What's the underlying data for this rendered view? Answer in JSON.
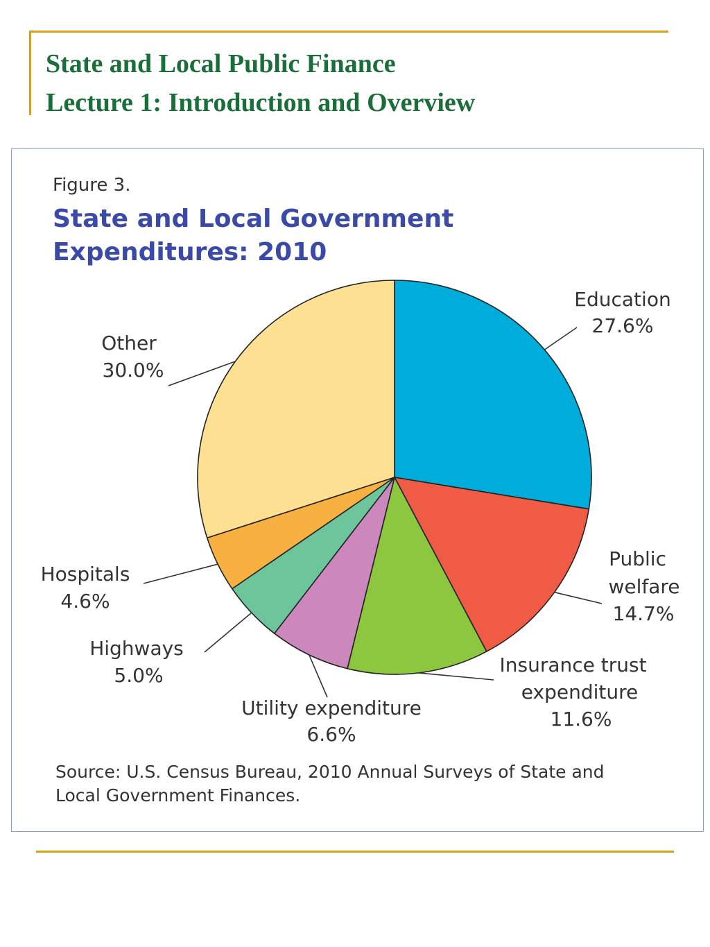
{
  "slide": {
    "title_line1": "State and Local Public Finance",
    "title_line2": "Lecture 1:  Introduction and Overview",
    "title_color": "#1a6e3a",
    "accent_color": "#d4a21b"
  },
  "figure": {
    "label": "Figure 3.",
    "title_line1": "State and Local Government",
    "title_line2": "Expenditures: 2010",
    "title_color": "#3a4aa6",
    "source_line1": "Source: U.S. Census Bureau, 2010 Annual Surveys of State and",
    "source_line2": "Local Government Finances."
  },
  "chart_data": {
    "type": "pie",
    "start": "12 o'clock",
    "direction": "clockwise",
    "slices": [
      {
        "label": "Education",
        "value": 27.6,
        "display": "27.6%",
        "color": "#00acd9"
      },
      {
        "label": "Public welfare",
        "value": 14.7,
        "display": "14.7%",
        "color": "#ef5b45"
      },
      {
        "label": "Insurance trust expenditure",
        "value": 11.6,
        "display": "11.6%",
        "color": "#8dc63f"
      },
      {
        "label": "Utility expenditure",
        "value": 6.6,
        "display": "6.6%",
        "color": "#cc88bd"
      },
      {
        "label": "Highways",
        "value": 5.0,
        "display": "5.0%",
        "color": "#6cc59b"
      },
      {
        "label": "Hospitals",
        "value": 4.6,
        "display": "4.6%",
        "color": "#f8b040"
      },
      {
        "label": "Other",
        "value": 30.0,
        "display": "30.0%",
        "color": "#fde092"
      }
    ]
  }
}
